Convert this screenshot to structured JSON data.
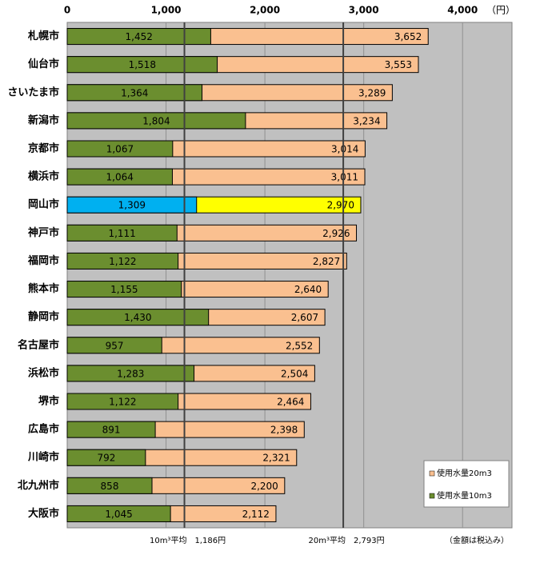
{
  "chart_data": {
    "type": "overlap-barh",
    "unit": "（円）",
    "categories": [
      "札幌市",
      "仙台市",
      "さいたま市",
      "新潟市",
      "京都市",
      "横浜市",
      "岡山市",
      "神戸市",
      "福岡市",
      "熊本市",
      "静岡市",
      "名古屋市",
      "浜松市",
      "堺市",
      "広島市",
      "川崎市",
      "北九州市",
      "大阪市"
    ],
    "series": [
      {
        "name": "使用水量20m3",
        "color": "#fac090",
        "highlight_color": "#ffff00",
        "values": [
          3652,
          3553,
          3289,
          3234,
          3014,
          3011,
          2970,
          2926,
          2827,
          2640,
          2607,
          2552,
          2504,
          2464,
          2398,
          2321,
          2200,
          2112
        ],
        "value_labels": [
          "3,652",
          "3,553",
          "3,289",
          "3,234",
          "3,014",
          "3,011",
          "2,970",
          "2,926",
          "2,827",
          "2,640",
          "2,607",
          "2,552",
          "2,504",
          "2,464",
          "2,398",
          "2,321",
          "2,200",
          "2,112"
        ]
      },
      {
        "name": "使用水量10m3",
        "color": "#6b8e2f",
        "highlight_color": "#00b0f0",
        "values": [
          1452,
          1518,
          1364,
          1804,
          1067,
          1064,
          1309,
          1111,
          1122,
          1155,
          1430,
          957,
          1283,
          1122,
          891,
          792,
          858,
          1045
        ],
        "value_labels": [
          "1,452",
          "1,518",
          "1,364",
          "1,804",
          "1,067",
          "1,064",
          "1,309",
          "1,111",
          "1,122",
          "1,155",
          "1,430",
          "957",
          "1,283",
          "1,122",
          "891",
          "792",
          "858",
          "1,045"
        ]
      }
    ],
    "highlight_category": "岡山市",
    "averages": [
      {
        "value": 1186,
        "label": "10m³平均　1,186円"
      },
      {
        "value": 2793,
        "label": "20m³平均　2,793円"
      }
    ],
    "xlim": [
      0,
      4500
    ],
    "xticks": [
      0,
      {
        "value": 1000,
        "label": "1,000"
      },
      {
        "value": 2000,
        "label": "2,000"
      },
      {
        "value": 3000,
        "label": "3,000"
      },
      {
        "value": 4000,
        "label": "4,000"
      }
    ],
    "grid": true,
    "legend": "bottom-right",
    "note": "（金額は税込み）"
  }
}
